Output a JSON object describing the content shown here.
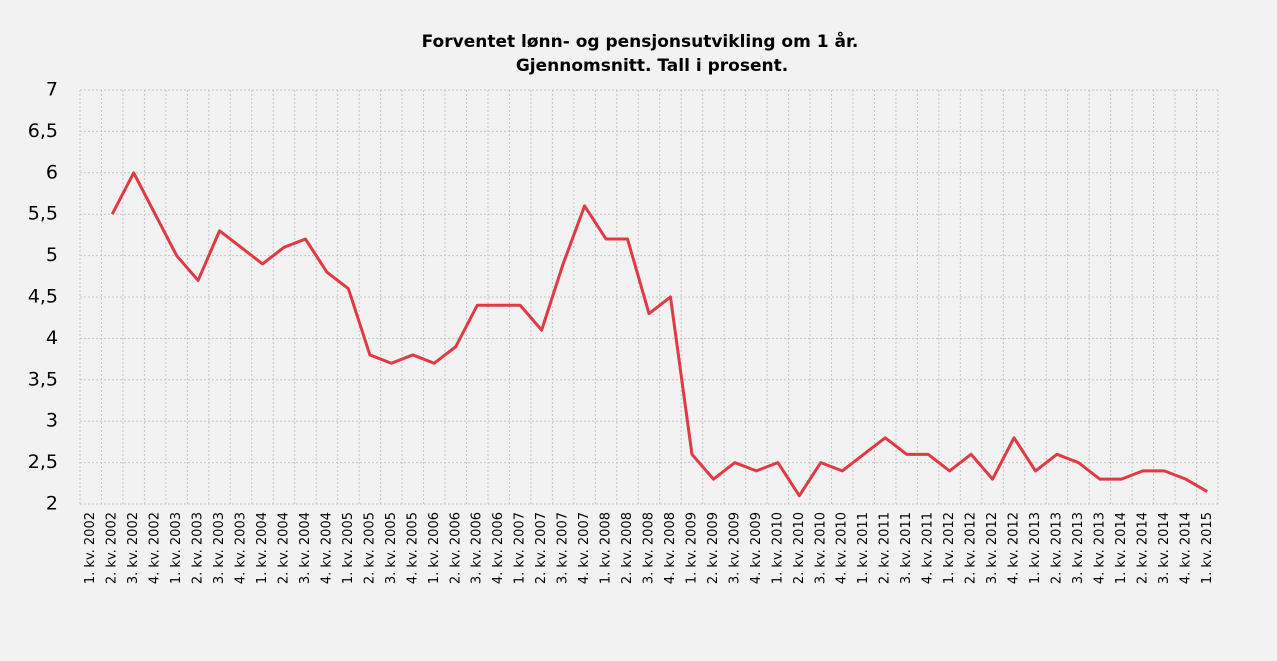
{
  "chart_data": {
    "type": "line",
    "title": [
      "Forventet lønn- og pensjonsutvikling om 1 år.",
      "Gjennomsnitt. Tall i prosent."
    ],
    "categories": [
      "1. kv. 2002",
      "2. kv. 2002",
      "3. kv. 2002",
      "4. kv. 2002",
      "1. kv. 2003",
      "2. kv. 2003",
      "3. kv. 2003",
      "4. kv. 2003",
      "1. kv. 2004",
      "2. kv. 2004",
      "3. kv. 2004",
      "4. kv. 2004",
      "1. kv. 2005",
      "2. kv. 2005",
      "3. kv. 2005",
      "4. kv. 2005",
      "1. kv. 2006",
      "2. kv. 2006",
      "3. kv. 2006",
      "4. kv. 2006",
      "1. kv. 2007",
      "2. kv. 2007",
      "3. kv. 2007",
      "4. kv. 2007",
      "1. kv. 2008",
      "2. kv. 2008",
      "3. kv. 2008",
      "4. kv. 2008",
      "1. kv. 2009",
      "2. kv. 2009",
      "3. kv. 2009",
      "4. kv. 2009",
      "1. kv. 2010",
      "2. kv. 2010",
      "3. kv. 2010",
      "4. kv. 2010",
      "1. kv. 2011",
      "2. kv. 2011",
      "3. kv. 2011",
      "4. kv. 2011",
      "1. kv. 2012",
      "2. kv. 2012",
      "3. kv. 2012",
      "4. kv. 2012",
      "1. kv. 2013",
      "2. kv. 2013",
      "3. kv. 2013",
      "4. kv. 2013",
      "1. kv. 2014",
      "2. kv. 2014",
      "3. kv. 2014",
      "4. kv. 2014",
      "1. kv. 2015"
    ],
    "values": [
      null,
      5.5,
      6.0,
      5.5,
      5.0,
      4.7,
      5.3,
      5.1,
      4.9,
      5.1,
      5.2,
      4.8,
      4.6,
      3.8,
      3.7,
      3.8,
      3.7,
      3.9,
      4.4,
      4.4,
      4.4,
      4.1,
      4.9,
      5.6,
      5.2,
      5.2,
      4.3,
      4.5,
      2.6,
      2.3,
      2.5,
      2.4,
      2.5,
      2.1,
      2.5,
      2.4,
      2.6,
      2.8,
      2.6,
      2.6,
      2.4,
      2.6,
      2.3,
      2.8,
      2.4,
      2.6,
      2.5,
      2.3,
      2.3,
      2.4,
      2.4,
      2.3,
      2.15
    ],
    "color": "#e03a45",
    "ylim": [
      2,
      7
    ],
    "yticks": [
      2,
      {
        "value": 2.5,
        "label": "2,5"
      },
      3,
      {
        "value": 3.5,
        "label": "3,5"
      },
      4,
      {
        "value": 4.5,
        "label": "4,5"
      },
      5,
      {
        "value": 5.5,
        "label": "5,5"
      },
      6,
      {
        "value": 6.5,
        "label": "6,5"
      },
      7
    ],
    "grid": true
  }
}
